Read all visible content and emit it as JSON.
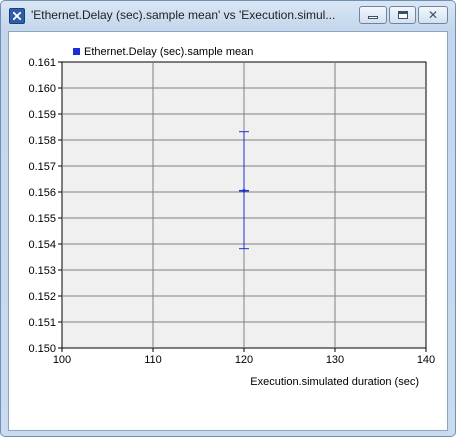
{
  "window": {
    "title": "'Ethernet.Delay (sec).sample mean' vs 'Execution.simul...",
    "icon": "chart-window-icon",
    "buttons": {
      "minimize": "minimize-icon",
      "maximize": "maximize-icon",
      "close": "close-icon"
    }
  },
  "colors": {
    "series": "#1a2fd6",
    "plot_background": "#f0f0f0",
    "grid": "#808080"
  },
  "chart_data": {
    "type": "scatter",
    "title": "",
    "xlabel": "Execution.simulated duration (sec)",
    "ylabel": "",
    "xlim": [
      100,
      140
    ],
    "ylim": [
      0.15,
      0.161
    ],
    "x_ticks": [
      "100",
      "110",
      "120",
      "130",
      "140"
    ],
    "y_ticks": [
      "0.150",
      "0.151",
      "0.152",
      "0.153",
      "0.154",
      "0.155",
      "0.156",
      "0.157",
      "0.158",
      "0.159",
      "0.160",
      "0.161"
    ],
    "grid": true,
    "legend": "top-left",
    "series": [
      {
        "name": "Ethernet.Delay (sec).sample mean",
        "points": [
          {
            "x": 120,
            "y": 0.15605,
            "y_low": 0.15382,
            "y_high": 0.15832
          }
        ]
      }
    ]
  }
}
